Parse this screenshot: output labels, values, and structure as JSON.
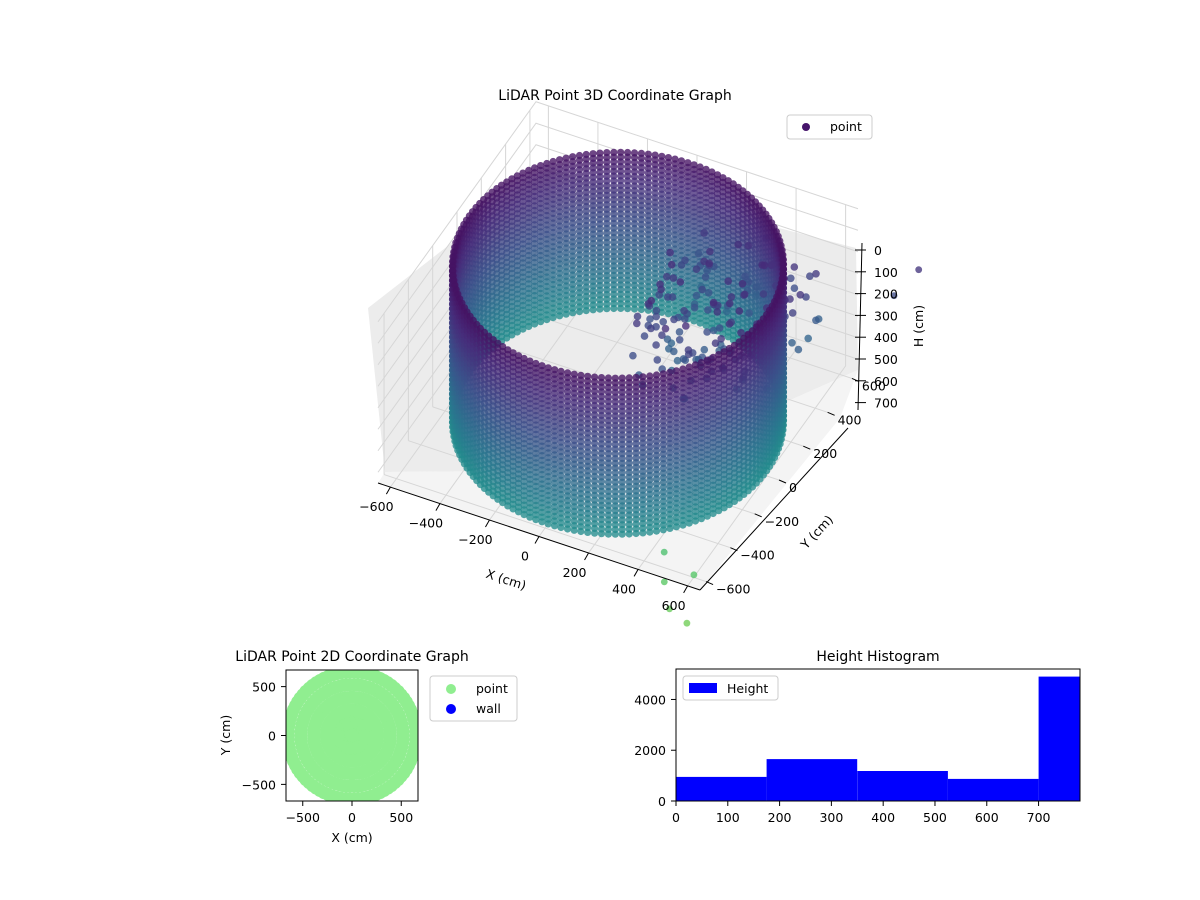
{
  "chart_data": [
    {
      "type": "scatter",
      "title": "LiDAR Point 3D Coordinate Graph",
      "xlabel": "X (cm)",
      "ylabel": "Y (cm)",
      "zlabel": "H (cm)",
      "xlim": [
        -650,
        650
      ],
      "ylim": [
        -650,
        650
      ],
      "zlim": [
        750,
        0
      ],
      "x_ticks": [
        "−600",
        "−400",
        "−200",
        "0",
        "200",
        "400",
        "600"
      ],
      "y_ticks": [
        "−600",
        "−400",
        "−200",
        "0",
        "200",
        "400",
        "600"
      ],
      "z_ticks": [
        "0",
        "100",
        "200",
        "300",
        "400",
        "500",
        "600",
        "700"
      ],
      "z_axis_inverted": true,
      "colormap": "viridis",
      "legend": [
        {
          "label": "point",
          "color": "#46156b"
        }
      ],
      "legend_position": "top-right",
      "grid": true,
      "shape": "cylindrical wall of points, radius ~600 cm, height 0-750 cm, with scattered interior points near the top"
    },
    {
      "type": "scatter",
      "title": "LiDAR Point 2D Coordinate Graph",
      "xlabel": "X (cm)",
      "ylabel": "Y (cm)",
      "xlim": [
        -670,
        670
      ],
      "ylim": [
        -670,
        670
      ],
      "x_ticks": [
        "−500",
        "0",
        "500"
      ],
      "y_ticks": [
        "−500",
        "0",
        "500"
      ],
      "series": [
        {
          "name": "point",
          "color": "#90ee90"
        },
        {
          "name": "wall",
          "color": "#0000ff"
        }
      ],
      "legend_position": "outside-right",
      "shape": "filled disc of points, radius ~650 cm"
    },
    {
      "type": "bar",
      "title": "Height Histogram",
      "xlim": [
        0,
        780
      ],
      "ylim": [
        0,
        5200
      ],
      "x_ticks": [
        "0",
        "100",
        "200",
        "300",
        "400",
        "500",
        "600",
        "700"
      ],
      "y_ticks": [
        "0",
        "2000",
        "4000"
      ],
      "series": [
        {
          "name": "Height",
          "color": "#0000ff"
        }
      ],
      "bins": [
        {
          "start": 0,
          "end": 175,
          "value": 950
        },
        {
          "start": 175,
          "end": 350,
          "value": 1650
        },
        {
          "start": 350,
          "end": 525,
          "value": 1180
        },
        {
          "start": 525,
          "end": 700,
          "value": 870
        },
        {
          "start": 700,
          "end": 780,
          "value": 4900
        }
      ],
      "legend_position": "top-left"
    }
  ]
}
